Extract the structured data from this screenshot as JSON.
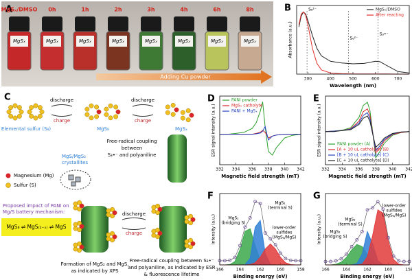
{
  "panel_a": {
    "label": "A",
    "header": "MgSₓ/DMSO",
    "times": [
      "0h",
      "1h",
      "2h",
      "3h",
      "4h",
      "6h",
      "8h"
    ],
    "vial_label": "MgSₓ",
    "arrow_text": "Adding Cu powder"
  },
  "panel_c": {
    "label": "C",
    "discharge": "discharge",
    "charge": "charge",
    "sulfur_label": "Elemental sulfur (S₈)",
    "mgs8_label": "MgS₈",
    "mgsx_label": "MgSₓ",
    "coupling_lines": [
      "Free-radical coupling",
      "between",
      "S₃•⁻ and polyaniline"
    ],
    "crystallites_lines": [
      "MgS/MgS₂",
      "crystallites"
    ],
    "legend_mg": "Magnesium (Mg)",
    "legend_s": "Sulfur (S)",
    "impact_lines": [
      "Proposed impact of PANI on",
      "Mg/S battery mechanism:"
    ],
    "equation": "MgS₈ ⇌ MgS₍₂₋ₓ₎ ⇌ MgS",
    "xps_caption": [
      "Formation of MgS₂ and MgS,",
      "as indicated by XPS"
    ],
    "esr_caption": [
      "Free-radical coupling between S₃•⁻",
      "and polyaniline, as indicated by ESR",
      "& fluorescence lifetime"
    ]
  },
  "chart_data": [
    {
      "type": "line",
      "label": "B",
      "xlabel": "Wavelength (nm)",
      "ylabel": "Absorbance (a.u.)",
      "xlim": [
        250,
        750
      ],
      "xticks": [
        300,
        400,
        500,
        600,
        700
      ],
      "ylim": [
        0,
        3.2
      ],
      "legend": "upper right",
      "x": [
        260,
        270,
        280,
        290,
        300,
        320,
        340,
        360,
        400,
        450,
        500,
        550,
        600,
        620,
        650,
        700,
        750
      ],
      "series": [
        {
          "name": "MgSₓ/DMSO",
          "color": "#222222",
          "values": [
            2.2,
            2.7,
            2.9,
            2.8,
            2.5,
            1.8,
            1.2,
            0.85,
            0.6,
            0.52,
            0.48,
            0.5,
            0.6,
            0.58,
            0.4,
            0.12,
            0.05
          ]
        },
        {
          "name": "After reacting",
          "color": "#e0302c",
          "values": [
            2.3,
            2.8,
            2.9,
            2.75,
            2.3,
            1.2,
            0.5,
            0.2,
            0.05,
            0.02,
            0.01,
            0.01,
            0.01,
            0.01,
            0.01,
            0.0,
            0.0
          ]
        }
      ],
      "annotations": [
        [
          "S₈²⁻"
        ],
        [
          "S₆²⁻"
        ],
        [
          "S₃•⁻"
        ]
      ]
    },
    {
      "type": "line",
      "label": "D",
      "xlabel": "Magnetic field strength (mT)",
      "ylabel": "ESR signal intensity (a.u.)",
      "xlim": [
        332,
        342
      ],
      "xticks": [
        332,
        334,
        336,
        338,
        340,
        342
      ],
      "ylim": [
        -0.8,
        1.0
      ],
      "legend": "upper left",
      "x": [
        332,
        333,
        334,
        335,
        336,
        336.5,
        337,
        337.3,
        337.6,
        338,
        338.5,
        339,
        340,
        341,
        342
      ],
      "series": [
        {
          "name": "PANI powder",
          "color": "#2ca02c",
          "values": [
            0,
            0,
            0.02,
            0.05,
            0.15,
            0.3,
            0.6,
            0.85,
            0.2,
            -0.45,
            -0.55,
            -0.35,
            -0.1,
            -0.03,
            0
          ]
        },
        {
          "name": "MgSₓ catholyte",
          "color": "#d62728",
          "values": [
            0,
            0,
            0,
            0,
            0,
            0.02,
            0.05,
            0.1,
            0.05,
            -0.1,
            -0.05,
            -0.02,
            0,
            0,
            0
          ]
        },
        {
          "name": "PANI + MgSₓ",
          "color": "#1f3fbf",
          "values": [
            0,
            0,
            0,
            0,
            0,
            0.01,
            0.03,
            0.08,
            0.2,
            -0.15,
            -0.05,
            -0.02,
            0,
            0,
            0
          ]
        }
      ]
    },
    {
      "type": "line",
      "label": "E",
      "xlabel": "Magnetic field strength (mT)",
      "ylabel": "ESR signal intensity (a.u.)",
      "xlim": [
        332,
        342
      ],
      "xticks": [
        332,
        334,
        336,
        338,
        340,
        342
      ],
      "ylim": [
        -0.7,
        0.75
      ],
      "legend": "lower left",
      "x": [
        332,
        333,
        334,
        335,
        336,
        336.5,
        337,
        337.3,
        337.6,
        338,
        338.5,
        339,
        340,
        341,
        342
      ],
      "series": [
        {
          "name": "PANI powder (A)",
          "color": "#2ca02c",
          "values": [
            0,
            0.01,
            0.03,
            0.08,
            0.3,
            0.55,
            0.62,
            0.45,
            0.05,
            -0.55,
            -0.42,
            -0.25,
            -0.08,
            -0.02,
            0
          ]
        },
        {
          "name": "[A + 10 uL catholyte] (B)",
          "color": "#d62728",
          "values": [
            0,
            0.01,
            0.02,
            0.06,
            0.22,
            0.42,
            0.48,
            0.35,
            0.02,
            -0.45,
            -0.35,
            -0.2,
            -0.06,
            -0.02,
            0
          ]
        },
        {
          "name": "[B + 10 uL catholyte] (C)",
          "color": "#1f3fbf",
          "values": [
            0,
            0.01,
            0.02,
            0.05,
            0.18,
            0.34,
            0.4,
            0.28,
            0.0,
            -0.4,
            -0.3,
            -0.17,
            -0.05,
            -0.01,
            0
          ]
        },
        {
          "name": "[C + 10 uL catholyte] (D)",
          "color": "#222222",
          "values": [
            0,
            0,
            0.02,
            0.04,
            0.15,
            0.28,
            0.33,
            0.22,
            -0.02,
            -0.33,
            -0.25,
            -0.14,
            -0.04,
            -0.01,
            0
          ]
        }
      ]
    },
    {
      "type": "xps",
      "label": "F",
      "xlabel": "Binding energy (eV)",
      "ylabel": "Intensity (a.u.)",
      "xlim": [
        166,
        158
      ],
      "xticks": [
        166,
        164,
        162,
        160,
        158
      ],
      "ylim": [
        0,
        0.85
      ],
      "x": [
        166,
        165.5,
        165,
        164.5,
        164,
        163.5,
        163,
        162.5,
        162,
        161.5,
        161,
        160.5,
        160,
        159.5,
        159,
        158.5,
        158
      ],
      "series": [
        {
          "color": "#3aa84a",
          "fill": true,
          "values": [
            0,
            0,
            0.005,
            0.04,
            0.18,
            0.4,
            0.43,
            0.23,
            0.06,
            0.01,
            0,
            0,
            0,
            0,
            0,
            0,
            0
          ]
        },
        {
          "color": "#2f7fd6",
          "fill": true,
          "values": [
            0,
            0,
            0,
            0,
            0,
            0.003,
            0.08,
            0.45,
            0.53,
            0.13,
            0.007,
            0,
            0,
            0,
            0,
            0,
            0
          ]
        },
        {
          "color": "#e23a3a",
          "fill": true,
          "values": [
            0,
            0,
            0,
            0,
            0,
            0,
            0.004,
            0.025,
            0.09,
            0.19,
            0.25,
            0.19,
            0.09,
            0.025,
            0.004,
            0,
            0
          ]
        },
        {
          "color": "#6a4a9a",
          "marker": "circle",
          "values": [
            0.05,
            0.05,
            0.055,
            0.09,
            0.23,
            0.45,
            0.56,
            0.755,
            0.73,
            0.38,
            0.31,
            0.24,
            0.14,
            0.075,
            0.055,
            0.05,
            0.05
          ]
        }
      ],
      "annotations": [
        [
          "MgS₂",
          "(bridging S)"
        ],
        [
          "MgS₂",
          "(terminal S)"
        ],
        [
          "lower-order",
          "sulfides",
          "(MgS₂/MgS)"
        ]
      ]
    },
    {
      "type": "xps",
      "label": "G",
      "xlabel": "Binding energy (eV)",
      "ylabel": "Intensity (a.u.)",
      "xlim": [
        166,
        158
      ],
      "xticks": [
        166,
        164,
        162,
        160,
        158
      ],
      "ylim": [
        0,
        1.05
      ],
      "x": [
        166,
        165.5,
        165,
        164.5,
        164,
        163.5,
        163,
        162.5,
        162,
        161.5,
        161,
        160.5,
        160,
        159.5,
        159,
        158.5,
        158
      ],
      "series": [
        {
          "color": "#3aa84a",
          "fill": true,
          "values": [
            0,
            0,
            0.01,
            0.04,
            0.11,
            0.22,
            0.3,
            0.27,
            0.15,
            0.05,
            0.01,
            0,
            0,
            0,
            0,
            0,
            0
          ]
        },
        {
          "color": "#2f7fd6",
          "fill": true,
          "values": [
            0,
            0,
            0,
            0,
            0,
            0,
            0.02,
            0.16,
            0.49,
            0.31,
            0.06,
            0.005,
            0,
            0,
            0,
            0,
            0
          ]
        },
        {
          "color": "#e23a3a",
          "fill": true,
          "values": [
            0,
            0,
            0,
            0,
            0,
            0,
            0,
            0.01,
            0.12,
            0.43,
            0.81,
            0.76,
            0.35,
            0.08,
            0.01,
            0,
            0
          ]
        },
        {
          "color": "#6a4a9a",
          "marker": "circle",
          "values": [
            0.05,
            0.05,
            0.06,
            0.09,
            0.16,
            0.27,
            0.37,
            0.49,
            0.81,
            0.84,
            0.93,
            0.82,
            0.4,
            0.13,
            0.06,
            0.05,
            0.05
          ]
        }
      ],
      "annotations": [
        [
          "MgS₂",
          "(terminal S)"
        ],
        [
          "MgS₂",
          "(bridging S)"
        ],
        [
          "lower-order",
          "sulfides",
          "(MgS₂/MgS)"
        ]
      ]
    }
  ]
}
